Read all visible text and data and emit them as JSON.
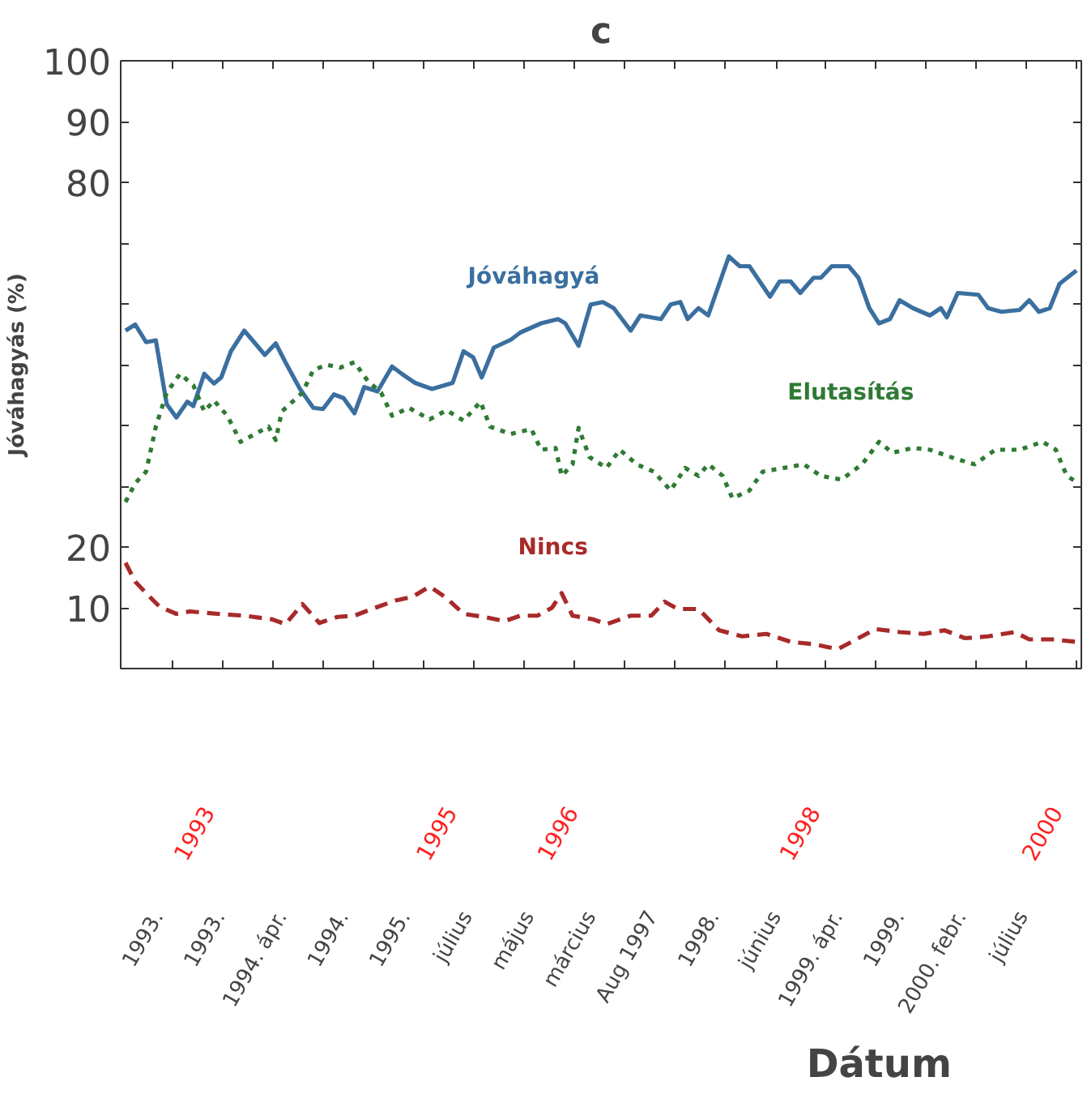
{
  "chart_data": {
    "type": "line",
    "title": "c",
    "xlabel": "Dátum",
    "ylabel": "Jóváhagyás (%)",
    "xlim": [
      1992.28,
      2000.21
    ],
    "ylim": [
      0,
      100
    ],
    "yticks": [
      {
        "value": 0,
        "label": null
      },
      {
        "value": 10,
        "label": "10"
      },
      {
        "value": 20,
        "label": "20"
      },
      {
        "value": 30,
        "label": null
      },
      {
        "value": 40,
        "label": null
      },
      {
        "value": 50,
        "label": null
      },
      {
        "value": 60,
        "label": null
      },
      {
        "value": 70,
        "label": null
      },
      {
        "value": 80,
        "label": "80"
      },
      {
        "value": 90,
        "label": "90"
      },
      {
        "value": 100,
        "label": "100"
      }
    ],
    "xticks": [
      {
        "value": 1992.71,
        "label": null
      },
      {
        "value": 1993.12,
        "label": null
      },
      {
        "value": 1993.54,
        "label": null
      },
      {
        "value": 1993.95,
        "label": null
      },
      {
        "value": 1994.37,
        "label": null
      },
      {
        "value": 1994.78,
        "label": null
      },
      {
        "value": 1995.2,
        "label": null
      },
      {
        "value": 1995.61,
        "label": null
      },
      {
        "value": 1996.03,
        "label": null
      },
      {
        "value": 1996.44,
        "label": null
      },
      {
        "value": 1996.86,
        "label": null
      },
      {
        "value": 1997.27,
        "label": null
      },
      {
        "value": 1997.69,
        "label": null
      },
      {
        "value": 1998.1,
        "label": null
      },
      {
        "value": 1998.51,
        "label": null
      },
      {
        "value": 1998.93,
        "label": null
      },
      {
        "value": 1999.34,
        "label": null
      },
      {
        "value": 1999.76,
        "label": null
      },
      {
        "value": 2000.17,
        "label": null
      },
      {
        "value": 1993,
        "label": "1993"
      },
      {
        "value": 1995,
        "label": "1995"
      },
      {
        "value": 1996,
        "label": "1996"
      },
      {
        "value": 1998,
        "label": "1998"
      },
      {
        "value": 2000,
        "label": "2000"
      }
    ],
    "grid": false,
    "annotations": [
      "1993.",
      "1993.",
      "1994. ápr.",
      "1994.",
      "1995.",
      "július",
      "május",
      "március",
      "Aug 1997",
      "1998.",
      "június",
      "1999. ápr.",
      "1999.",
      "2000. febr.",
      "július"
    ],
    "series": [
      {
        "name": "Jóváhagyá",
        "color": "#3a6f9f",
        "line_style": "solid",
        "x": [
          1992.32,
          1992.4,
          1992.49,
          1992.57,
          1992.66,
          1992.74,
          1992.83,
          1992.88,
          1992.97,
          1993.05,
          1993.11,
          1993.19,
          1993.3,
          1993.39,
          1993.47,
          1993.56,
          1993.64,
          1993.76,
          1993.87,
          1993.95,
          1994.04,
          1994.12,
          1994.21,
          1994.29,
          1994.4,
          1994.52,
          1994.6,
          1994.71,
          1994.85,
          1995.02,
          1995.11,
          1995.19,
          1995.26,
          1995.36,
          1995.5,
          1995.58,
          1995.75,
          1995.89,
          1995.95,
          1996.06,
          1996.16,
          1996.26,
          1996.35,
          1996.49,
          1996.57,
          1996.74,
          1996.82,
          1996.9,
          1996.96,
          1997.05,
          1997.13,
          1997.3,
          1997.39,
          1997.47,
          1997.64,
          1997.72,
          1997.81,
          1997.89,
          1998.0,
          1998.06,
          1998.15,
          1998.29,
          1998.37,
          1998.46,
          1998.54,
          1998.63,
          1998.71,
          1998.82,
          1998.96,
          1999.05,
          1999.1,
          1999.19,
          1999.36,
          1999.44,
          1999.55,
          1999.7,
          1999.78,
          1999.86,
          1999.95,
          2000.03,
          2000.17
        ],
        "values": [
          55.6,
          56.6,
          53.7,
          54.0,
          43.5,
          41.3,
          43.9,
          43.2,
          48.5,
          46.9,
          47.9,
          52.2,
          55.6,
          53.5,
          51.6,
          53.5,
          50.4,
          46.0,
          42.9,
          42.7,
          45.1,
          44.5,
          42.0,
          46.3,
          45.6,
          49.7,
          48.5,
          47.0,
          46.0,
          47.0,
          52.2,
          51.2,
          47.9,
          52.8,
          54.1,
          55.3,
          56.8,
          57.5,
          56.8,
          53.1,
          59.9,
          60.3,
          59.3,
          55.6,
          58.1,
          57.5,
          59.9,
          60.3,
          57.5,
          59.3,
          58.1,
          67.8,
          66.2,
          66.2,
          61.2,
          63.7,
          63.7,
          61.8,
          64.3,
          64.3,
          66.2,
          66.2,
          64.3,
          59.3,
          56.8,
          57.5,
          60.6,
          59.3,
          58.1,
          59.3,
          57.8,
          61.8,
          61.5,
          59.3,
          58.7,
          59.0,
          60.6,
          58.7,
          59.3,
          63.3,
          65.5
        ]
      },
      {
        "name": "Elutasítás",
        "color": "#2f7a34",
        "line_style": "dotted",
        "x": [
          1992.32,
          1992.4,
          1992.49,
          1992.57,
          1992.66,
          1992.77,
          1992.88,
          1992.97,
          1993.05,
          1993.16,
          1993.27,
          1993.39,
          1993.5,
          1993.56,
          1993.61,
          1993.78,
          1993.87,
          1993.98,
          1994.09,
          1994.21,
          1994.32,
          1994.43,
          1994.52,
          1994.66,
          1994.83,
          1994.97,
          1995.11,
          1995.25,
          1995.33,
          1995.5,
          1995.67,
          1995.75,
          1995.87,
          1995.92,
          1996.01,
          1996.06,
          1996.15,
          1996.29,
          1996.4,
          1996.54,
          1996.68,
          1996.82,
          1996.94,
          1997.05,
          1997.13,
          1997.25,
          1997.33,
          1997.47,
          1997.58,
          1997.75,
          1997.92,
          1998.06,
          1998.23,
          1998.4,
          1998.54,
          1998.65,
          1998.82,
          1998.96,
          1999.16,
          1999.33,
          1999.5,
          1999.7,
          1999.89,
          2000.0,
          2000.09,
          2000.17
        ],
        "values": [
          27.4,
          30.5,
          32.4,
          39.8,
          45.4,
          48.5,
          46.6,
          42.3,
          44.1,
          41.6,
          37.3,
          38.6,
          39.8,
          37.6,
          42.3,
          45.4,
          49.1,
          50.0,
          49.5,
          50.4,
          47.3,
          45.4,
          41.6,
          42.9,
          41.0,
          42.5,
          40.8,
          43.9,
          39.8,
          38.6,
          39.4,
          36.0,
          36.3,
          31.7,
          33.6,
          39.6,
          34.8,
          33.0,
          36.0,
          33.6,
          32.4,
          29.3,
          33.0,
          31.7,
          33.6,
          31.7,
          28.0,
          29.3,
          32.4,
          33.0,
          33.6,
          31.7,
          31.1,
          33.6,
          37.3,
          35.5,
          36.3,
          36.0,
          34.6,
          33.6,
          36.0,
          36.0,
          37.3,
          36.0,
          31.7,
          30.7
        ]
      },
      {
        "name": "Nincs",
        "color": "#a82a2a",
        "line_style": "dashed",
        "x": [
          1992.32,
          1992.4,
          1992.52,
          1992.6,
          1992.74,
          1992.85,
          1993.08,
          1993.3,
          1993.53,
          1993.64,
          1993.78,
          1993.92,
          1994.07,
          1994.21,
          1994.38,
          1994.55,
          1994.69,
          1994.83,
          1994.97,
          1995.11,
          1995.28,
          1995.45,
          1995.58,
          1995.72,
          1995.84,
          1995.92,
          1996.01,
          1996.18,
          1996.29,
          1996.49,
          1996.66,
          1996.77,
          1996.88,
          1997.05,
          1997.22,
          1997.41,
          1997.61,
          1997.81,
          1998.0,
          1998.2,
          1998.37,
          1998.51,
          1998.71,
          1998.91,
          1999.08,
          1999.25,
          1999.44,
          1999.66,
          1999.78,
          1999.97,
          2000.17
        ],
        "values": [
          17.4,
          14.3,
          11.8,
          10.2,
          9.0,
          9.4,
          9.0,
          8.7,
          8.1,
          7.3,
          10.6,
          7.5,
          8.5,
          8.7,
          10.0,
          11.2,
          11.8,
          13.5,
          11.6,
          9.0,
          8.5,
          7.8,
          8.7,
          8.7,
          10.0,
          12.4,
          8.7,
          8.1,
          7.3,
          8.7,
          8.7,
          11.0,
          9.8,
          9.8,
          6.3,
          5.3,
          5.7,
          4.4,
          4.0,
          3.2,
          5.0,
          6.5,
          6.0,
          5.7,
          6.3,
          5.0,
          5.3,
          6.0,
          4.8,
          4.8,
          4.4
        ]
      }
    ]
  }
}
